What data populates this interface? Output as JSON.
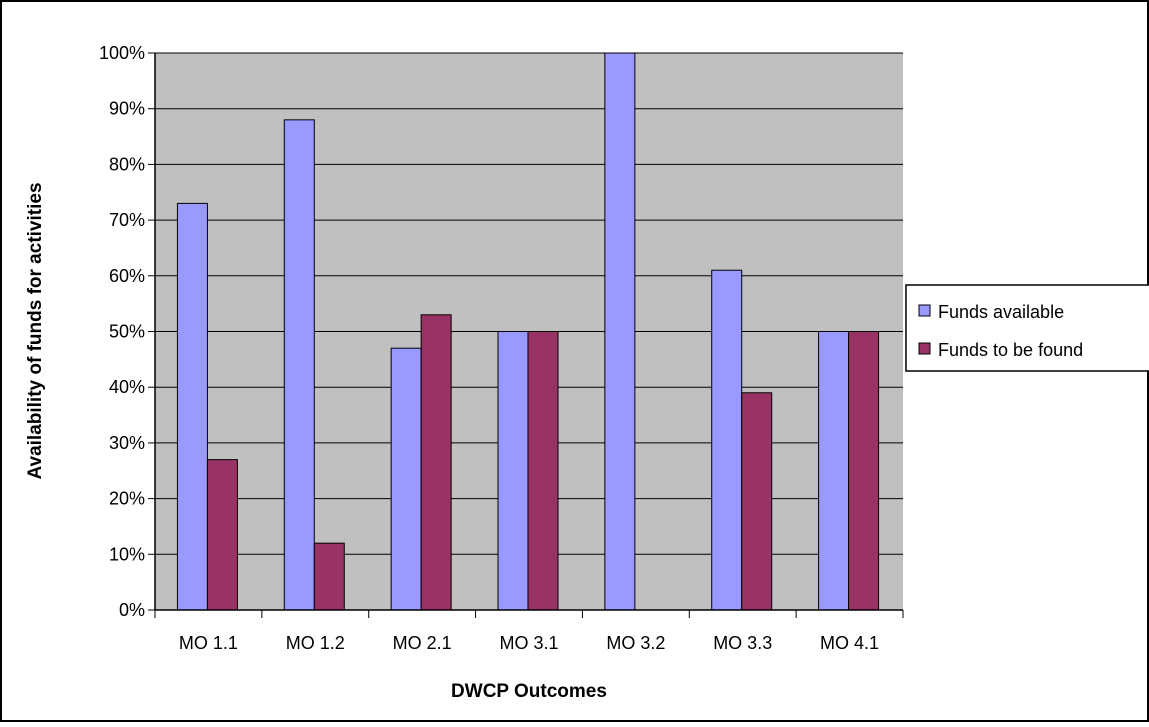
{
  "chart_data": {
    "type": "bar",
    "title": "",
    "xlabel": "DWCP Outcomes",
    "ylabel": "Availability of funds for activities",
    "categories": [
      "MO 1.1",
      "MO 1.2",
      "MO 2.1",
      "MO 3.1",
      "MO 3.2",
      "MO 3.3",
      "MO 4.1"
    ],
    "series": [
      {
        "name": "Funds available",
        "values": [
          73,
          88,
          47,
          50,
          100,
          61,
          50
        ],
        "color": "#9999ff"
      },
      {
        "name": "Funds to be found",
        "values": [
          27,
          12,
          53,
          50,
          0,
          39,
          50
        ],
        "color": "#993366"
      }
    ],
    "ylim": [
      0,
      100
    ],
    "yticks": [
      0,
      10,
      20,
      30,
      40,
      50,
      60,
      70,
      80,
      90,
      100
    ],
    "ytick_labels": [
      "0%",
      "10%",
      "20%",
      "30%",
      "40%",
      "50%",
      "60%",
      "70%",
      "80%",
      "90%",
      "100%"
    ],
    "grid": true,
    "plot_background": "#c0c0c0",
    "legend_position": "right"
  }
}
